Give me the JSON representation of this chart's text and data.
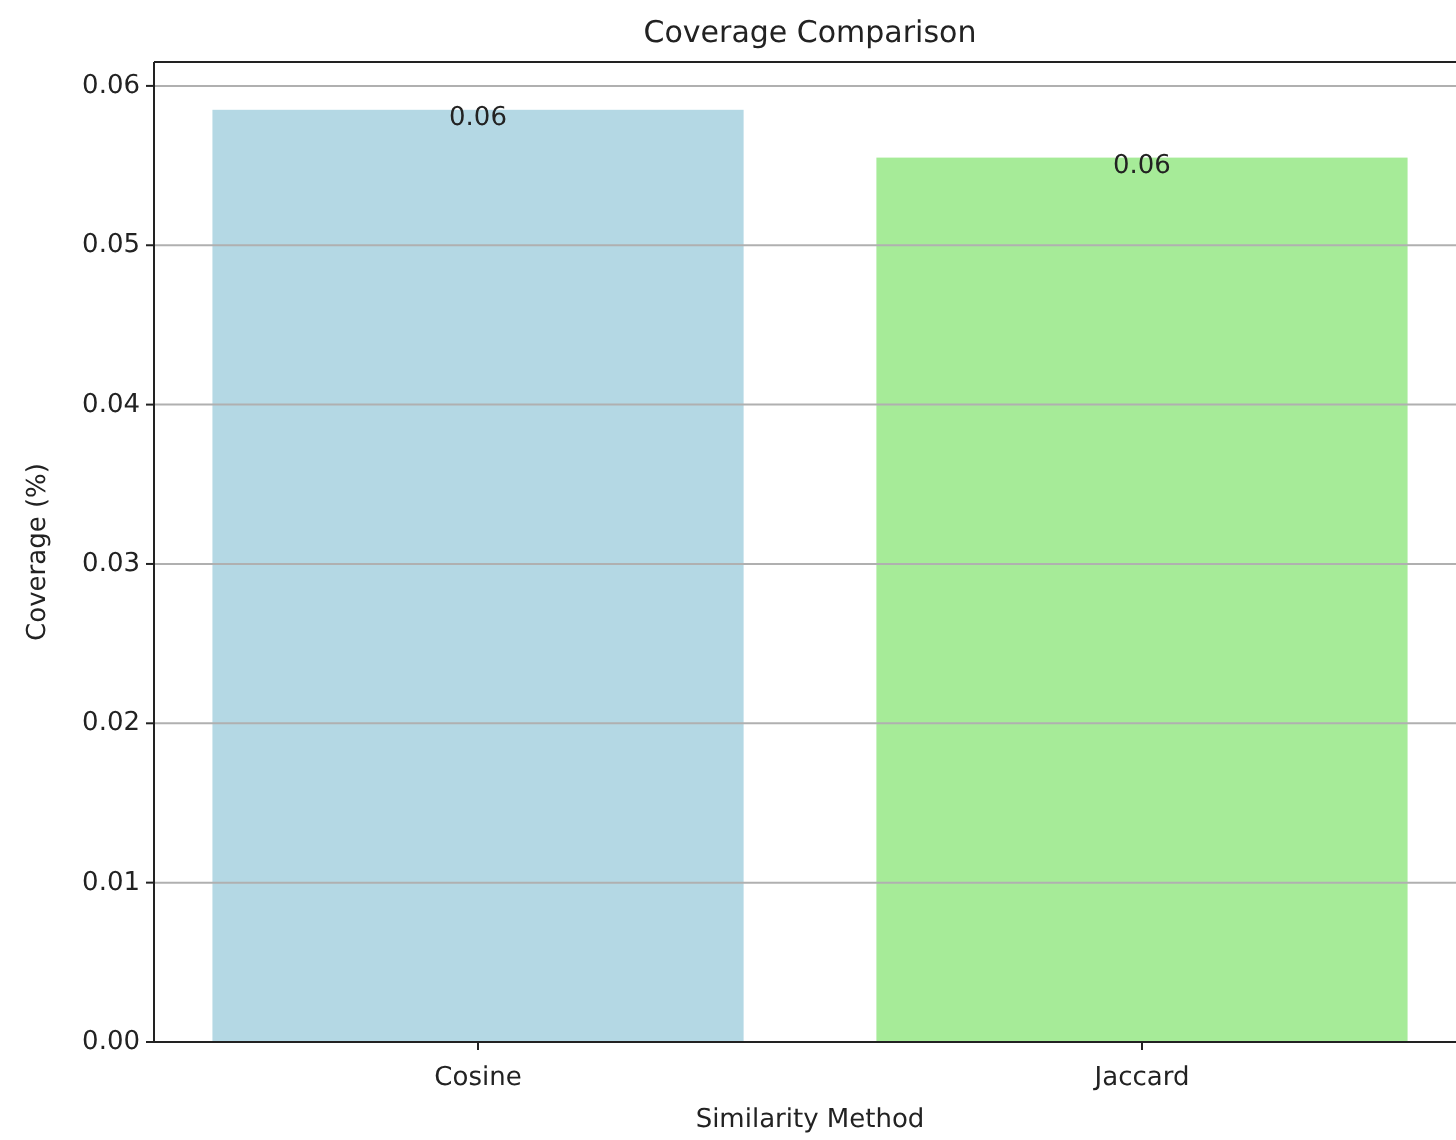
{
  "chart_data": {
    "type": "bar",
    "title": "Coverage Comparison",
    "xlabel": "Similarity Method",
    "ylabel": "Coverage (%)",
    "categories": [
      "Cosine",
      "Jaccard"
    ],
    "values": [
      0.0585,
      0.0555
    ],
    "colors": [
      "#b4d8e4",
      "#a6eb98"
    ],
    "value_labels": [
      "0.06",
      "0.06"
    ],
    "ylim": [
      0,
      0.0615
    ],
    "yticks": [
      {
        "value": 0,
        "label": "0.00"
      },
      {
        "value": 0.01,
        "label": "0.01"
      },
      {
        "value": 0.02,
        "label": "0.02"
      },
      {
        "value": 0.03,
        "label": "0.03"
      },
      {
        "value": 0.04,
        "label": "0.04"
      },
      {
        "value": 0.05,
        "label": "0.05"
      },
      {
        "value": 0.06,
        "label": "0.06"
      }
    ],
    "grid": "y"
  }
}
